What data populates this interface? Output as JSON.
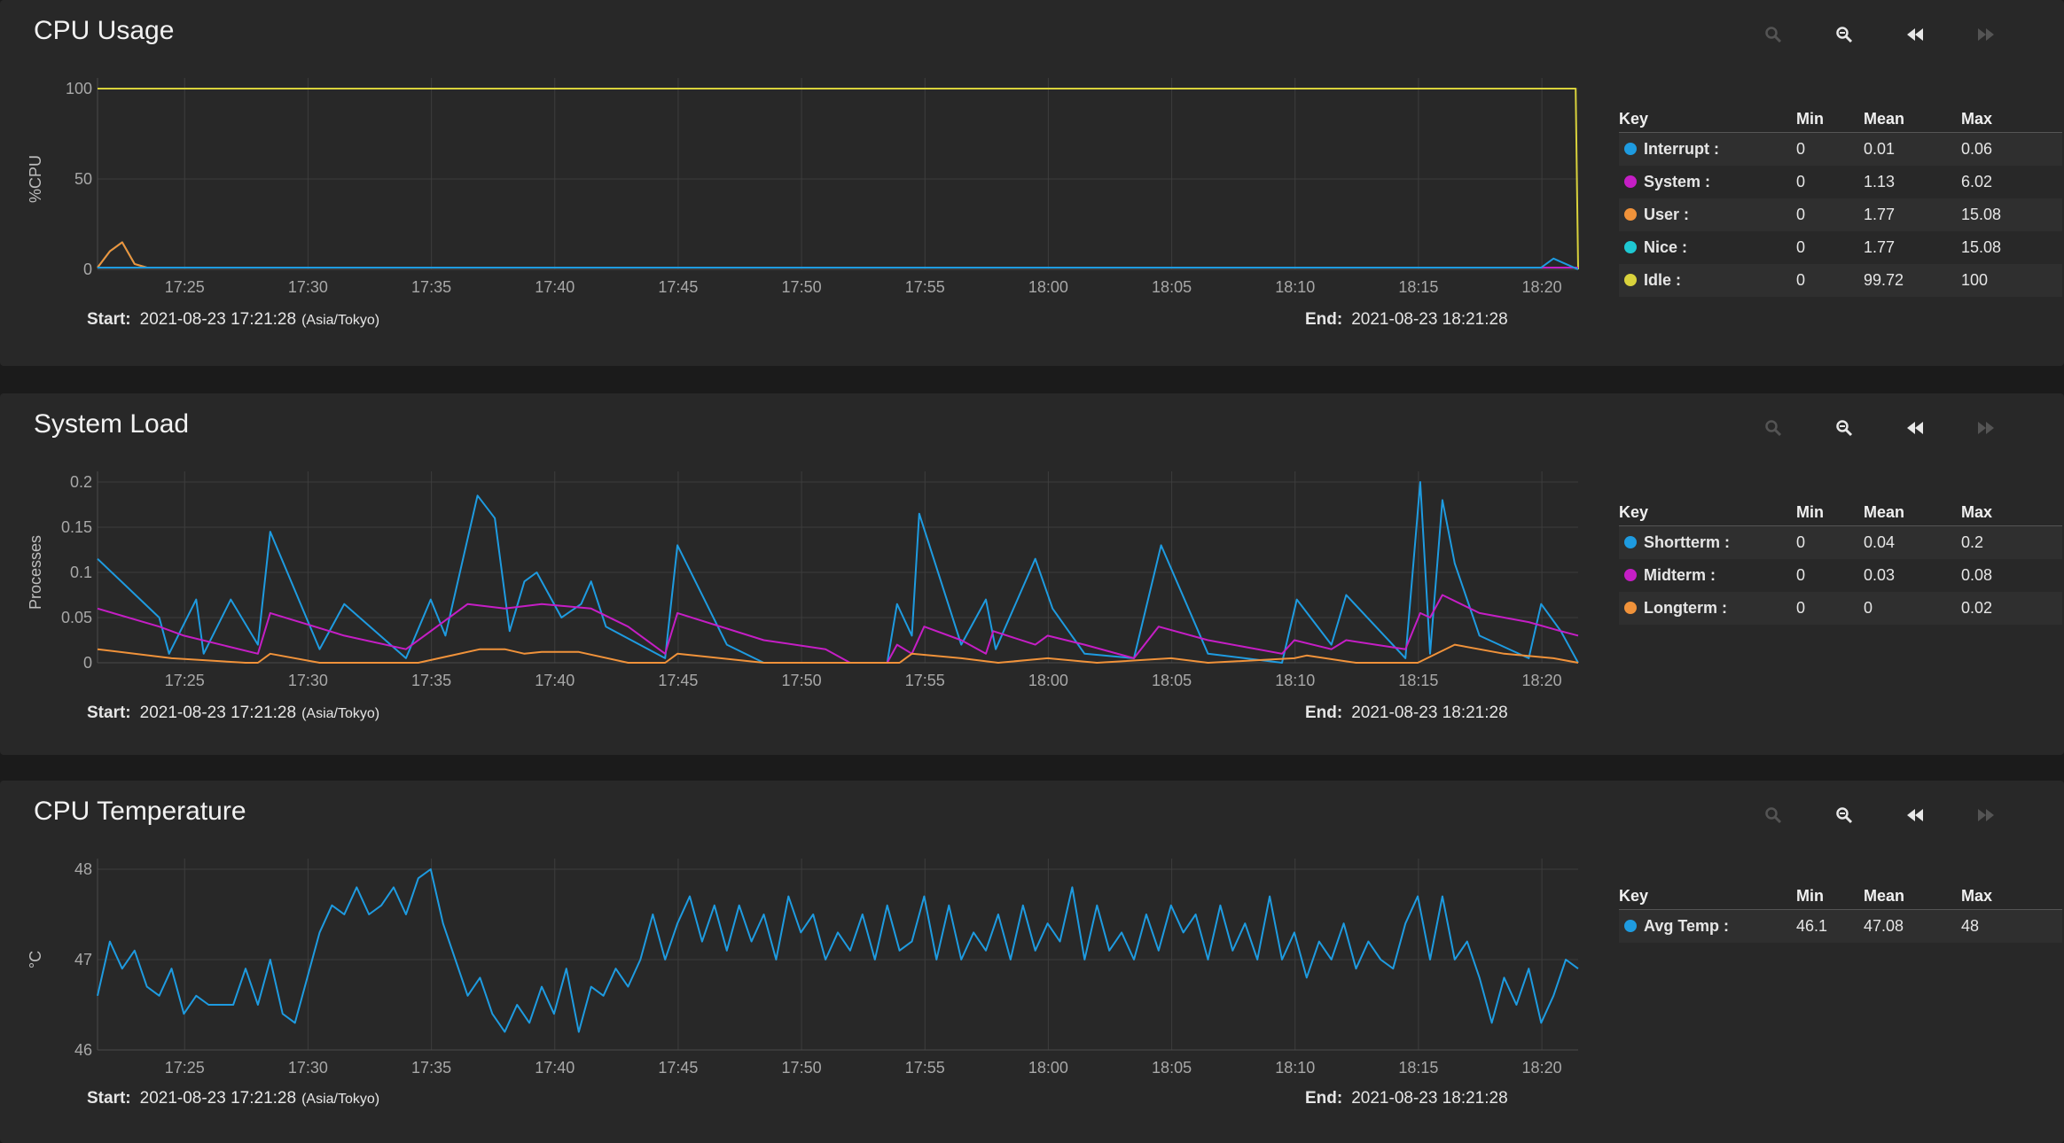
{
  "colors": {
    "interrupt": "#1e9be0",
    "system": "#c51ec5",
    "user": "#f0923a",
    "nice": "#1ec8d2",
    "idle": "#d9d23c",
    "shortterm": "#1e9be0",
    "midterm": "#c51ec5",
    "longterm": "#f0923a",
    "avgtemp": "#1e9be0"
  },
  "icons": [
    "zoom-in-icon",
    "zoom-out-icon",
    "rewind-icon",
    "fast-forward-icon"
  ],
  "legend_headers": {
    "key": "Key",
    "min": "Min",
    "mean": "Mean",
    "max": "Max"
  },
  "footer": {
    "start_label": "Start:",
    "start_value": "2021-08-23 17:21:28",
    "timezone": "(Asia/Tokyo)",
    "end_label": "End:",
    "end_value": "2021-08-23 18:21:28"
  },
  "panels": [
    {
      "title": "CPU Usage",
      "legend": [
        {
          "label": "Interrupt :",
          "min": "0",
          "mean": "0.01",
          "max": "0.06",
          "color": "#1e9be0"
        },
        {
          "label": "System :",
          "min": "0",
          "mean": "1.13",
          "max": "6.02",
          "color": "#c51ec5"
        },
        {
          "label": "User :",
          "min": "0",
          "mean": "1.77",
          "max": "15.08",
          "color": "#f0923a"
        },
        {
          "label": "Nice :",
          "min": "0",
          "mean": "1.77",
          "max": "15.08",
          "color": "#1ec8d2"
        },
        {
          "label": "Idle :",
          "min": "0",
          "mean": "99.72",
          "max": "100",
          "color": "#d9d23c"
        }
      ]
    },
    {
      "title": "System Load",
      "legend": [
        {
          "label": "Shortterm :",
          "min": "0",
          "mean": "0.04",
          "max": "0.2",
          "color": "#1e9be0"
        },
        {
          "label": "Midterm :",
          "min": "0",
          "mean": "0.03",
          "max": "0.08",
          "color": "#c51ec5"
        },
        {
          "label": "Longterm :",
          "min": "0",
          "mean": "0",
          "max": "0.02",
          "color": "#f0923a"
        }
      ]
    },
    {
      "title": "CPU Temperature",
      "legend": [
        {
          "label": "Avg Temp :",
          "min": "46.1",
          "mean": "47.08",
          "max": "48",
          "color": "#1e9be0"
        }
      ]
    }
  ],
  "chart_data": [
    {
      "type": "line",
      "ylabel": "%CPU",
      "ylim": [
        0,
        100
      ],
      "yticks": [
        "0",
        "50",
        "100"
      ],
      "xticks": [
        "17:25",
        "17:30",
        "17:35",
        "17:40",
        "17:45",
        "17:50",
        "17:55",
        "18:00",
        "18:05",
        "18:10",
        "18:15",
        "18:20"
      ],
      "xtick_minutes": [
        3.53,
        8.53,
        13.53,
        18.53,
        23.53,
        28.53,
        33.53,
        38.53,
        43.53,
        48.53,
        53.53,
        58.53
      ],
      "xlim_minutes": [
        0,
        60
      ],
      "grid": true,
      "series": [
        {
          "name": "Idle",
          "x": [
            0,
            59.9,
            60
          ],
          "y": [
            100,
            100,
            0
          ]
        },
        {
          "name": "Nice",
          "x": [
            0,
            0.5,
            1.0,
            1.5,
            2.0,
            60
          ],
          "y": [
            1,
            10,
            15,
            3,
            1,
            1
          ]
        },
        {
          "name": "User",
          "x": [
            0,
            0.5,
            1.0,
            1.5,
            2.0,
            60
          ],
          "y": [
            1,
            10,
            15,
            3,
            1,
            1
          ]
        },
        {
          "name": "System",
          "x": [
            0,
            60
          ],
          "y": [
            1,
            1
          ]
        },
        {
          "name": "Interrupt",
          "x": [
            0,
            58.5,
            59.0,
            59.5,
            60
          ],
          "y": [
            1,
            1,
            6,
            3,
            0
          ]
        }
      ]
    },
    {
      "type": "line",
      "ylabel": "Processes",
      "ylim": [
        0,
        0.2
      ],
      "yticks": [
        "0",
        "0.05",
        "0.1",
        "0.15",
        "0.2"
      ],
      "xticks": [
        "17:25",
        "17:30",
        "17:35",
        "17:40",
        "17:45",
        "17:50",
        "17:55",
        "18:00",
        "18:05",
        "18:10",
        "18:15",
        "18:20"
      ],
      "xtick_minutes": [
        3.53,
        8.53,
        13.53,
        18.53,
        23.53,
        28.53,
        33.53,
        38.53,
        43.53,
        48.53,
        53.53,
        58.53
      ],
      "xlim_minutes": [
        0,
        60
      ],
      "grid": true,
      "series": [
        {
          "name": "Shortterm",
          "x": [
            0,
            2.5,
            2.9,
            4.0,
            4.3,
            5.4,
            6.5,
            7.0,
            9.0,
            10.0,
            12.5,
            13.5,
            14.1,
            15.4,
            16.1,
            16.7,
            17.3,
            17.8,
            18.8,
            19.6,
            20.0,
            20.6,
            23.0,
            23.5,
            25.5,
            27.0,
            30.5,
            32.0,
            32.4,
            33.0,
            33.3,
            35.0,
            36.0,
            36.4,
            38.0,
            38.7,
            40.0,
            42.0,
            43.1,
            45.0,
            48.0,
            48.6,
            50.0,
            50.6,
            53.0,
            53.6,
            54.0,
            54.5,
            55.0,
            56.0,
            58.0,
            58.5,
            59.3,
            60
          ],
          "y": [
            0.115,
            0.05,
            0.01,
            0.07,
            0.01,
            0.07,
            0.02,
            0.145,
            0.015,
            0.065,
            0.005,
            0.07,
            0.03,
            0.185,
            0.16,
            0.035,
            0.09,
            0.1,
            0.05,
            0.065,
            0.09,
            0.04,
            0.005,
            0.13,
            0.02,
            0.0,
            0.0,
            0.0,
            0.065,
            0.03,
            0.165,
            0.02,
            0.07,
            0.015,
            0.115,
            0.06,
            0.01,
            0.005,
            0.13,
            0.01,
            0.0,
            0.07,
            0.02,
            0.075,
            0.005,
            0.2,
            0.01,
            0.18,
            0.11,
            0.03,
            0.005,
            0.065,
            0.035,
            0.0
          ]
        },
        {
          "name": "Midterm",
          "x": [
            0,
            2.5,
            3.5,
            6.5,
            7.0,
            10.0,
            12.5,
            13.5,
            15.0,
            16.5,
            18.0,
            20.0,
            21.5,
            23.0,
            23.5,
            27.0,
            29.5,
            30.5,
            32.0,
            32.4,
            33.0,
            33.5,
            35.0,
            36.0,
            36.3,
            38.0,
            38.5,
            40.0,
            42.0,
            43.0,
            45.0,
            48.0,
            48.5,
            50.0,
            50.6,
            53.0,
            53.6,
            54.0,
            54.5,
            56.0,
            58.0,
            59.3,
            60
          ],
          "y": [
            0.06,
            0.04,
            0.03,
            0.01,
            0.055,
            0.03,
            0.015,
            0.035,
            0.065,
            0.06,
            0.065,
            0.06,
            0.04,
            0.01,
            0.055,
            0.025,
            0.015,
            0.0,
            0.0,
            0.02,
            0.01,
            0.04,
            0.025,
            0.01,
            0.035,
            0.02,
            0.03,
            0.02,
            0.005,
            0.04,
            0.025,
            0.01,
            0.025,
            0.015,
            0.025,
            0.015,
            0.055,
            0.05,
            0.075,
            0.055,
            0.045,
            0.035,
            0.03
          ]
        },
        {
          "name": "Longterm",
          "x": [
            0,
            3.0,
            6.0,
            6.5,
            7.0,
            9.0,
            13.0,
            15.5,
            16.5,
            17.3,
            18.0,
            19.5,
            21.5,
            23.0,
            23.5,
            27.0,
            29.5,
            32.5,
            33.0,
            35.0,
            36.5,
            38.5,
            40.5,
            43.5,
            45.0,
            48.5,
            49.0,
            50.5,
            51.0,
            53.5,
            55.0,
            57.0,
            59.0,
            60
          ],
          "y": [
            0.015,
            0.005,
            0.0,
            0.0,
            0.01,
            0.0,
            0.0,
            0.015,
            0.015,
            0.01,
            0.012,
            0.012,
            0.0,
            0.0,
            0.01,
            0.0,
            0.0,
            0.0,
            0.01,
            0.005,
            0.0,
            0.005,
            0.0,
            0.005,
            0.0,
            0.005,
            0.008,
            0.002,
            0.0,
            0.0,
            0.02,
            0.01,
            0.005,
            0.0
          ]
        }
      ]
    },
    {
      "type": "line",
      "ylabel": "°C",
      "ylim": [
        46,
        48
      ],
      "yticks": [
        "46",
        "47",
        "48"
      ],
      "xticks": [
        "17:25",
        "17:30",
        "17:35",
        "17:40",
        "17:45",
        "17:50",
        "17:55",
        "18:00",
        "18:05",
        "18:10",
        "18:15",
        "18:20"
      ],
      "xtick_minutes": [
        3.53,
        8.53,
        13.53,
        18.53,
        23.53,
        28.53,
        33.53,
        38.53,
        43.53,
        48.53,
        53.53,
        58.53
      ],
      "xlim_minutes": [
        0,
        60
      ],
      "grid": true,
      "series": [
        {
          "name": "Avg Temp",
          "x": [
            0,
            0.5,
            1.0,
            1.5,
            2.0,
            2.5,
            3.0,
            3.5,
            4.0,
            4.5,
            5.0,
            5.5,
            6.0,
            6.5,
            7.0,
            7.5,
            8.0,
            8.5,
            9.0,
            9.5,
            10.0,
            10.5,
            11.0,
            11.5,
            12.0,
            12.5,
            13.0,
            13.5,
            14.0,
            14.5,
            15.0,
            15.5,
            16.0,
            16.5,
            17.0,
            17.5,
            18.0,
            18.5,
            19.0,
            19.5,
            20.0,
            20.5,
            21.0,
            21.5,
            22.0,
            22.5,
            23.0,
            23.5,
            24.0,
            24.5,
            25.0,
            25.5,
            26.0,
            26.5,
            27.0,
            27.5,
            28.0,
            28.5,
            29.0,
            29.5,
            30.0,
            30.5,
            31.0,
            31.5,
            32.0,
            32.5,
            33.0,
            33.5,
            34.0,
            34.5,
            35.0,
            35.5,
            36.0,
            36.5,
            37.0,
            37.5,
            38.0,
            38.5,
            39.0,
            39.5,
            40.0,
            40.5,
            41.0,
            41.5,
            42.0,
            42.5,
            43.0,
            43.5,
            44.0,
            44.5,
            45.0,
            45.5,
            46.0,
            46.5,
            47.0,
            47.5,
            48.0,
            48.5,
            49.0,
            49.5,
            50.0,
            50.5,
            51.0,
            51.5,
            52.0,
            52.5,
            53.0,
            53.5,
            54.0,
            54.5,
            55.0,
            55.5,
            56.0,
            56.5,
            57.0,
            57.5,
            58.0,
            58.5,
            59.0,
            59.5,
            60
          ],
          "y": [
            46.6,
            47.2,
            46.9,
            47.1,
            46.7,
            46.6,
            46.9,
            46.4,
            46.6,
            46.5,
            46.5,
            46.5,
            46.9,
            46.5,
            47.0,
            46.4,
            46.3,
            46.8,
            47.3,
            47.6,
            47.5,
            47.8,
            47.5,
            47.6,
            47.8,
            47.5,
            47.9,
            48.0,
            47.4,
            47.0,
            46.6,
            46.8,
            46.4,
            46.2,
            46.5,
            46.3,
            46.7,
            46.4,
            46.9,
            46.2,
            46.7,
            46.6,
            46.9,
            46.7,
            47.0,
            47.5,
            47.0,
            47.4,
            47.7,
            47.2,
            47.6,
            47.1,
            47.6,
            47.2,
            47.5,
            47.0,
            47.7,
            47.3,
            47.5,
            47.0,
            47.3,
            47.1,
            47.5,
            47.0,
            47.6,
            47.1,
            47.2,
            47.7,
            47.0,
            47.6,
            47.0,
            47.3,
            47.1,
            47.5,
            47.0,
            47.6,
            47.1,
            47.4,
            47.2,
            47.8,
            47.0,
            47.6,
            47.1,
            47.3,
            47.0,
            47.5,
            47.1,
            47.6,
            47.3,
            47.5,
            47.0,
            47.6,
            47.1,
            47.4,
            47.0,
            47.7,
            47.0,
            47.3,
            46.8,
            47.2,
            47.0,
            47.4,
            46.9,
            47.2,
            47.0,
            46.9,
            47.4,
            47.7,
            47.0,
            47.7,
            47.0,
            47.2,
            46.8,
            46.3,
            46.8,
            46.5,
            46.9,
            46.3,
            46.6,
            47.0,
            46.9
          ]
        }
      ]
    }
  ]
}
